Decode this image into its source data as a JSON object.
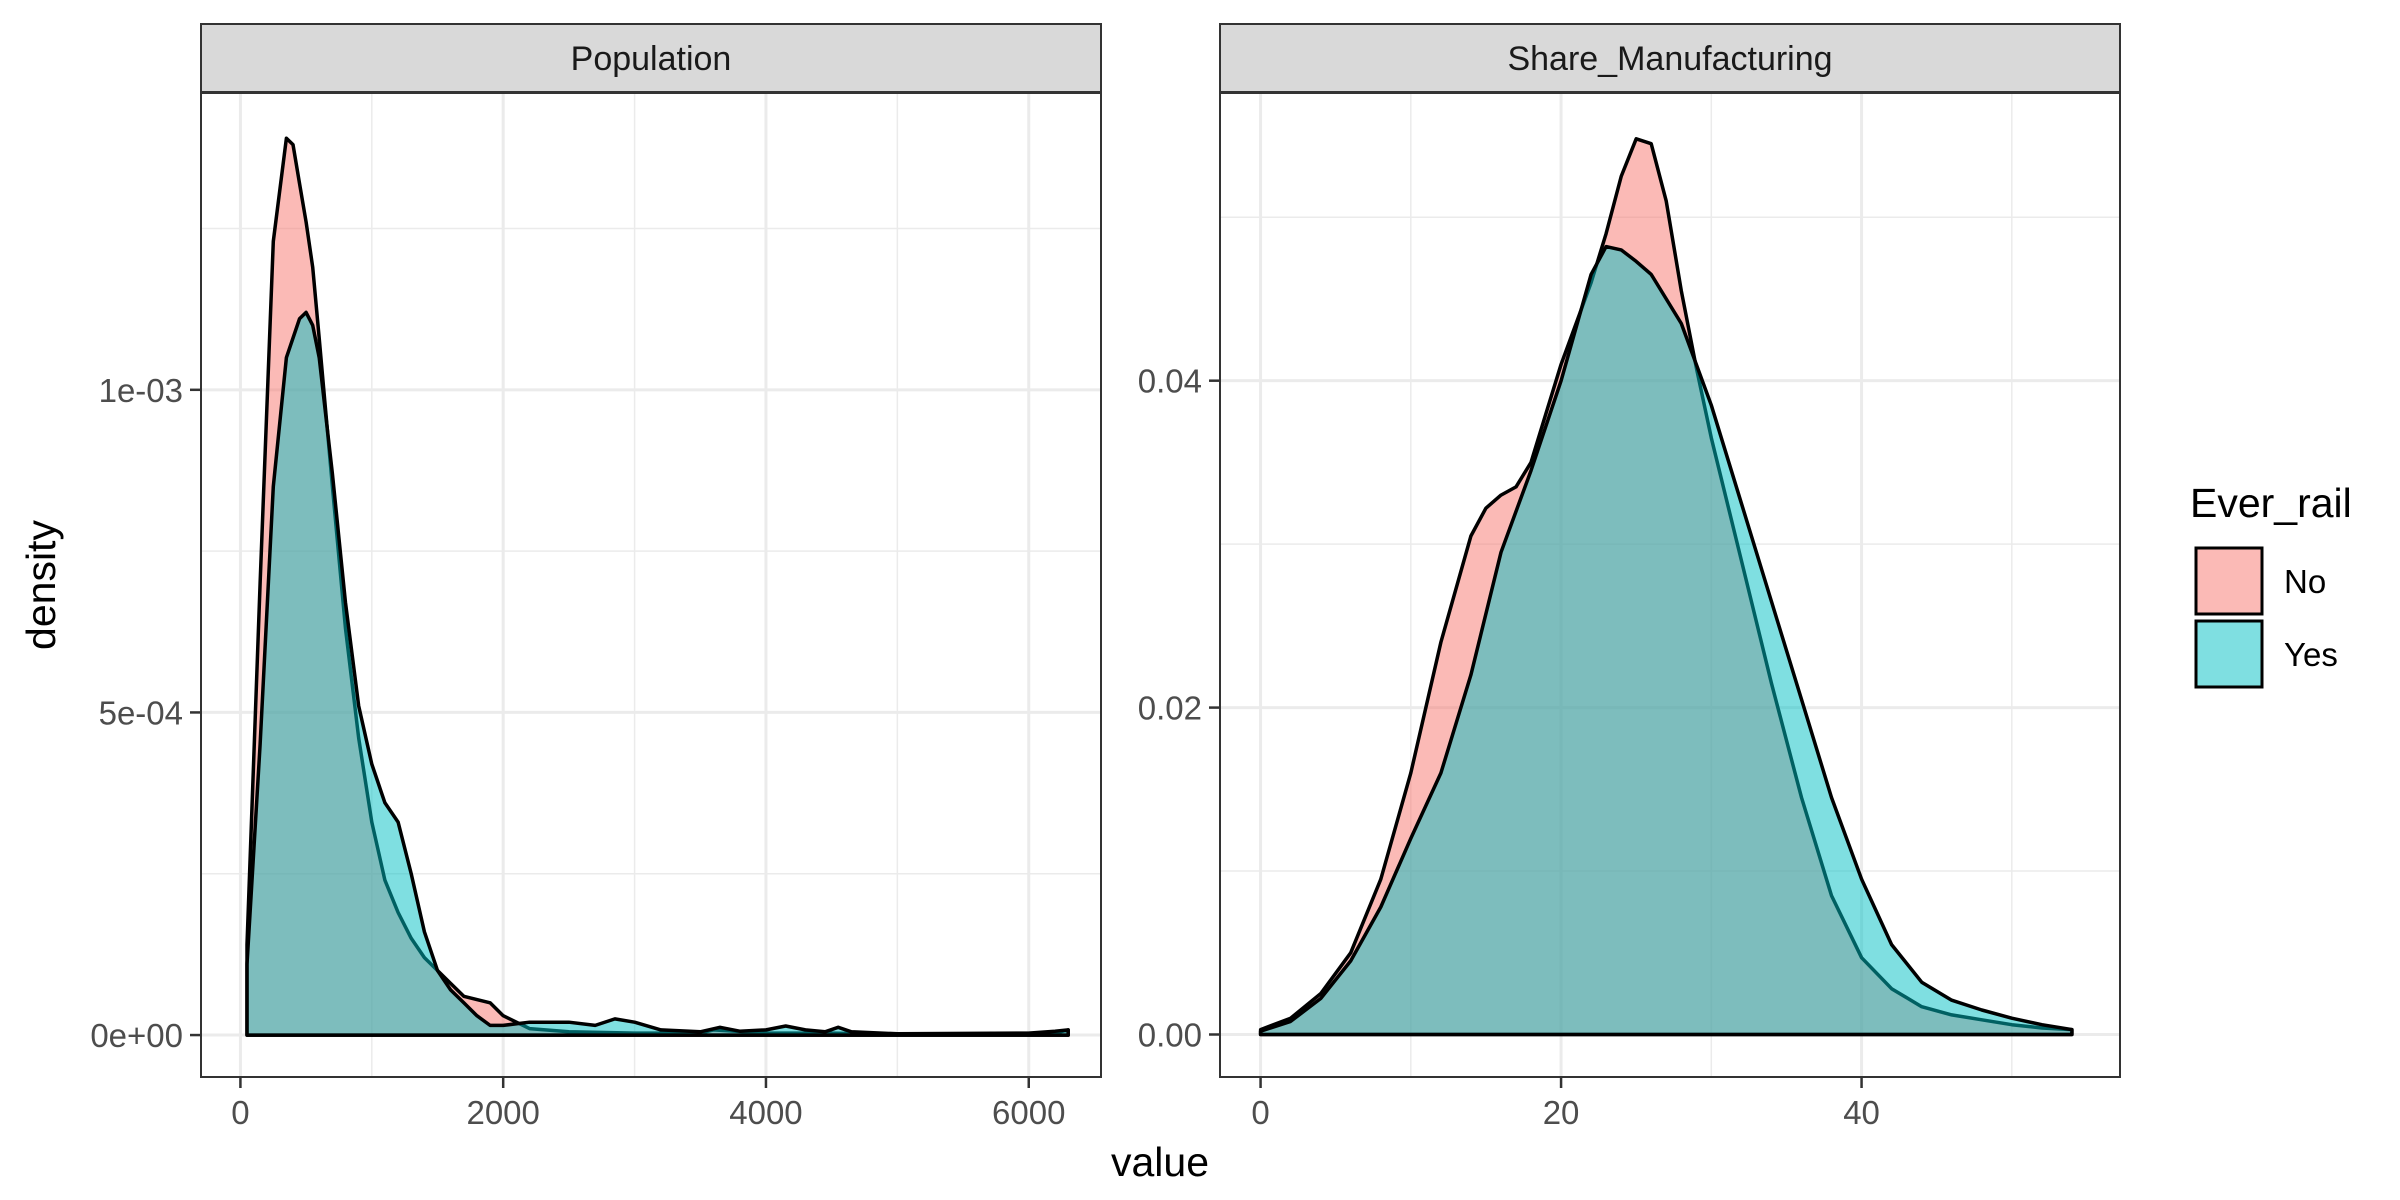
{
  "chart_data": {
    "type": "area",
    "subtype": "faceted density",
    "ylabel": "density",
    "xlabel": "value",
    "legend": {
      "title": "Ever_rail",
      "position": "right",
      "entries": [
        {
          "name": "No",
          "color": "#F8766D"
        },
        {
          "name": "Yes",
          "color": "#00BFC4"
        }
      ]
    },
    "grid": true,
    "fill_alpha": 0.5,
    "panels": [
      {
        "title": "Population",
        "xlim": [
          -300,
          6550
        ],
        "ylim": [
          -6.5e-05,
          0.00146
        ],
        "x_ticks": [
          0,
          2000,
          4000,
          6000
        ],
        "x_tick_labels": [
          "0",
          "2000",
          "4000",
          "6000"
        ],
        "y_ticks": [
          0,
          0.0005,
          0.001
        ],
        "y_tick_labels": [
          "0e+00",
          "5e-04",
          "1e-03"
        ],
        "series": [
          {
            "name": "No",
            "x": [
              50,
              150,
              250,
              350,
              400,
              450,
              500,
              550,
              600,
              700,
              800,
              900,
              1000,
              1100,
              1200,
              1300,
              1400,
              1500,
              1600,
              1700,
              1800,
              1900,
              2000,
              2200,
              2500,
              3000,
              3500,
              3600,
              4000,
              4200,
              4500,
              5000,
              5500,
              6000,
              6200,
              6300
            ],
            "y": [
              0.00014,
              0.0007,
              0.00123,
              0.00139,
              0.00138,
              0.00132,
              0.00126,
              0.00119,
              0.00108,
              0.00085,
              0.00063,
              0.00046,
              0.00033,
              0.00024,
              0.00019,
              0.00015,
              0.00012,
              0.0001,
              8e-05,
              6e-05,
              5.5e-05,
              5e-05,
              3e-05,
              1e-05,
              5e-06,
              3e-06,
              3e-06,
              8e-06,
              3e-06,
              3e-06,
              3e-06,
              1e-06,
              1e-06,
              1e-06,
              3e-06,
              8e-06
            ]
          },
          {
            "name": "Yes",
            "x": [
              50,
              150,
              250,
              350,
              450,
              500,
              550,
              600,
              700,
              800,
              900,
              1000,
              1100,
              1200,
              1300,
              1400,
              1500,
              1600,
              1700,
              1800,
              1900,
              2000,
              2200,
              2500,
              2700,
              2850,
              3000,
              3200,
              3500,
              3650,
              3800,
              4000,
              4150,
              4300,
              4450,
              4550,
              4650,
              5000,
              6000,
              6200,
              6300
            ],
            "y": [
              0.00011,
              0.00045,
              0.00085,
              0.00105,
              0.00111,
              0.00112,
              0.0011,
              0.00105,
              0.00087,
              0.00067,
              0.00051,
              0.00042,
              0.00036,
              0.00033,
              0.00025,
              0.00016,
              0.0001,
              7e-05,
              5e-05,
              3e-05,
              1.5e-05,
              1.5e-05,
              2e-05,
              2e-05,
              1.5e-05,
              2.5e-05,
              2e-05,
              8e-06,
              5e-06,
              1.2e-05,
              6e-06,
              8e-06,
              1.4e-05,
              8e-06,
              5e-06,
              1.2e-05,
              5e-06,
              2e-06,
              3e-06,
              6e-06,
              8e-06
            ]
          }
        ]
      },
      {
        "title": "Share_Manufacturing",
        "xlim": [
          -2.7,
          57.2
        ],
        "ylim": [
          -0.0026,
          0.0576
        ],
        "x_ticks": [
          0,
          20,
          40
        ],
        "x_tick_labels": [
          "0",
          "20",
          "40"
        ],
        "y_ticks": [
          0,
          0.02,
          0.04
        ],
        "y_tick_labels": [
          "0.00",
          "0.02",
          "0.04"
        ],
        "series": [
          {
            "name": "No",
            "x": [
              0,
              2,
              4,
              6,
              8,
              10,
              12,
              14,
              15,
              16,
              17,
              18,
              19,
              20,
              21,
              22,
              23,
              24,
              25,
              26,
              27,
              28,
              29,
              30,
              32,
              34,
              36,
              38,
              40,
              42,
              44,
              46,
              48,
              50,
              52,
              54
            ],
            "y": [
              0.0003,
              0.001,
              0.0025,
              0.005,
              0.0095,
              0.016,
              0.024,
              0.0305,
              0.0322,
              0.033,
              0.0335,
              0.035,
              0.038,
              0.041,
              0.0435,
              0.046,
              0.049,
              0.0525,
              0.0548,
              0.0545,
              0.051,
              0.0455,
              0.0408,
              0.0365,
              0.029,
              0.0215,
              0.0145,
              0.0085,
              0.0047,
              0.0028,
              0.0017,
              0.0012,
              0.0009,
              0.0006,
              0.0004,
              0.0003
            ]
          },
          {
            "name": "Yes",
            "x": [
              0,
              2,
              4,
              6,
              8,
              10,
              12,
              14,
              16,
              18,
              20,
              22,
              23,
              24,
              25,
              26,
              28,
              30,
              32,
              34,
              36,
              38,
              40,
              42,
              44,
              46,
              48,
              50,
              52,
              54
            ],
            "y": [
              0.0002,
              0.0008,
              0.0022,
              0.0045,
              0.0078,
              0.012,
              0.016,
              0.022,
              0.0295,
              0.0345,
              0.04,
              0.0465,
              0.0482,
              0.048,
              0.0473,
              0.0465,
              0.0435,
              0.0385,
              0.0325,
              0.0265,
              0.0205,
              0.0145,
              0.0095,
              0.0055,
              0.0032,
              0.0021,
              0.0015,
              0.001,
              0.0006,
              0.0003
            ]
          }
        ]
      }
    ]
  }
}
